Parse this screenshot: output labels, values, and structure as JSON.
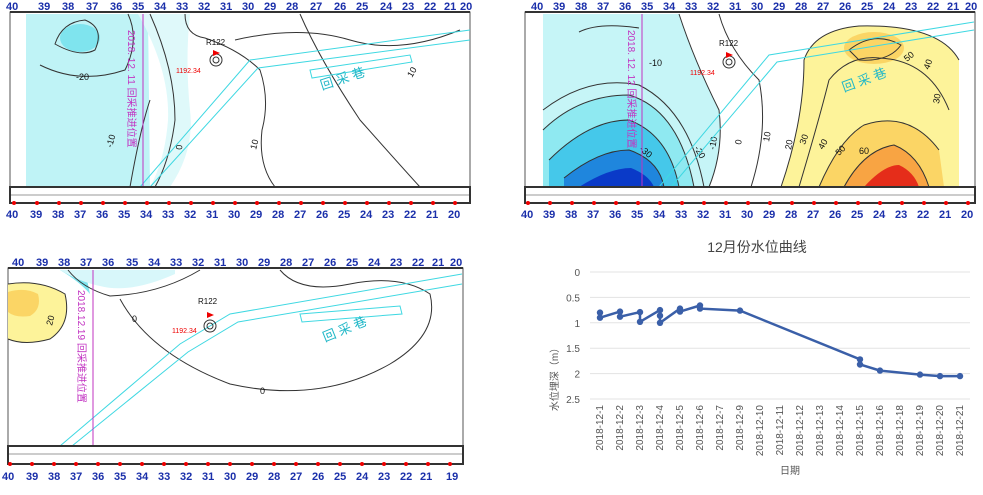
{
  "stations": [
    "40",
    "39",
    "38",
    "37",
    "36",
    "35",
    "34",
    "33",
    "32",
    "31",
    "30",
    "29",
    "28",
    "27",
    "26",
    "25",
    "24",
    "23",
    "22",
    "21",
    "20"
  ],
  "stations_bottom": [
    "40",
    "39",
    "38",
    "37",
    "36",
    "35",
    "34",
    "33",
    "32",
    "31",
    "30",
    "29",
    "28",
    "27",
    "26",
    "25",
    "24",
    "23",
    "22",
    "21",
    "20",
    "19"
  ],
  "well": {
    "name": "R122",
    "elevation": "1192.34"
  },
  "maps": [
    {
      "date_label": "2018. 12. 11 回采推进位置",
      "contours": [
        "-20",
        "-10",
        "0",
        "10",
        "10"
      ],
      "road_label": "回 采 巷"
    },
    {
      "date_label": "2018. 12. 12 回采推进位置",
      "contours_left": [
        "-10",
        "-30",
        "-20",
        "-10",
        "0",
        "10",
        "20"
      ],
      "contours_right": [
        "30",
        "40",
        "50",
        "60",
        "50",
        "40",
        "30"
      ],
      "road_label": "回 采 巷"
    },
    {
      "date_label": "2018.12.19 回采推进位置",
      "contours": [
        "20",
        "0",
        "0"
      ],
      "road_label": "回 采 巷"
    }
  ],
  "colors": {
    "cyan": "#b8f3f6",
    "blue_deep": "#0a3ac8",
    "yellow": "#fdf39a",
    "orange": "#f8a443",
    "red": "#e52d1a",
    "magenta": "#c233c2",
    "line": "#3a5fa8"
  },
  "chart_data": {
    "type": "line",
    "title": "12月份水位曲线",
    "xlabel": "日期",
    "ylabel": "水位埋深（m）",
    "ylim": [
      0,
      2.5
    ],
    "y_inverted": true,
    "y_ticks": [
      "0",
      "0.5",
      "1",
      "1.5",
      "2",
      "2.5"
    ],
    "categories": [
      "2018-12-1",
      "2018-12-2",
      "2018-12-3",
      "2018-12-4",
      "2018-12-5",
      "2018-12-6",
      "2018-12-7",
      "2018-12-9",
      "2018-12-10",
      "2018-12-11",
      "2018-12-12",
      "2018-12-13",
      "2018-12-14",
      "2018-12-15",
      "2018-12-16",
      "2018-12-18",
      "2018-12-19",
      "2018-12-20",
      "2018-12-21"
    ],
    "points": [
      {
        "x": "2018-12-1",
        "y": 0.8
      },
      {
        "x": "2018-12-1",
        "y": 0.9
      },
      {
        "x": "2018-12-2",
        "y": 0.78
      },
      {
        "x": "2018-12-2",
        "y": 0.88
      },
      {
        "x": "2018-12-3",
        "y": 0.79
      },
      {
        "x": "2018-12-3",
        "y": 0.98
      },
      {
        "x": "2018-12-4",
        "y": 0.75
      },
      {
        "x": "2018-12-4",
        "y": 0.86
      },
      {
        "x": "2018-12-4",
        "y": 1.0
      },
      {
        "x": "2018-12-5",
        "y": 0.72
      },
      {
        "x": "2018-12-5",
        "y": 0.78
      },
      {
        "x": "2018-12-6",
        "y": 0.66
      },
      {
        "x": "2018-12-6",
        "y": 0.72
      },
      {
        "x": "2018-12-9",
        "y": 0.76
      },
      {
        "x": "2018-12-15",
        "y": 1.72
      },
      {
        "x": "2018-12-15",
        "y": 1.82
      },
      {
        "x": "2018-12-16",
        "y": 1.94
      },
      {
        "x": "2018-12-19",
        "y": 2.02
      },
      {
        "x": "2018-12-20",
        "y": 2.05
      },
      {
        "x": "2018-12-21",
        "y": 2.05
      }
    ]
  }
}
